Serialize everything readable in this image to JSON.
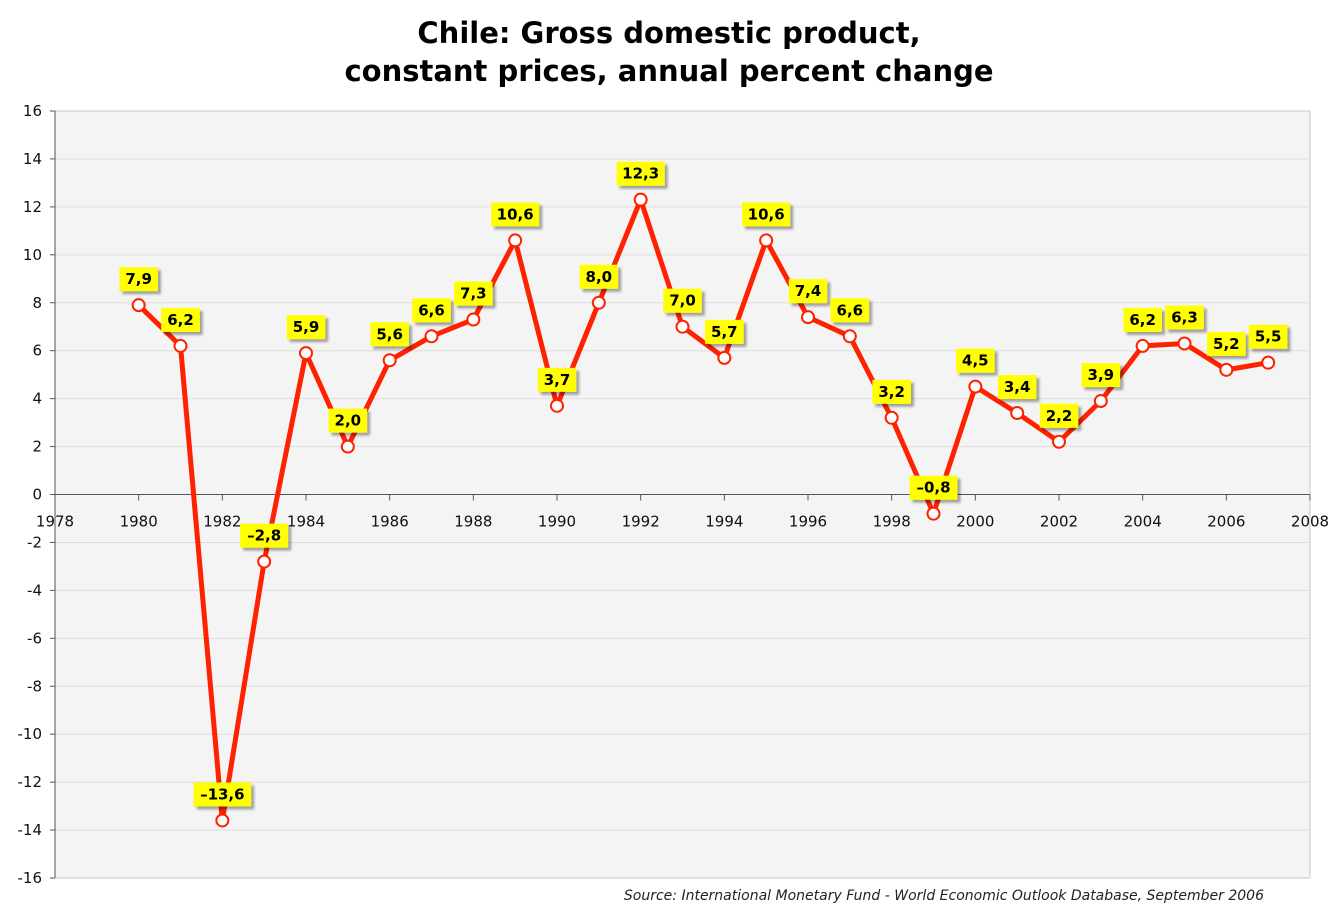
{
  "chart_data": {
    "type": "line",
    "title_line1": "Chile: Gross domestic product,",
    "title_line2": "constant prices, annual percent change",
    "xlabel": "",
    "ylabel": "",
    "source": "Source: International Monetary Fund - World Economic Outlook Database, September 2006",
    "xlim": [
      1978,
      2008
    ],
    "ylim": [
      -16,
      16
    ],
    "x_ticks": [
      "1978",
      "1980",
      "1982",
      "1984",
      "1986",
      "1988",
      "1990",
      "1992",
      "1994",
      "1996",
      "1998",
      "2000",
      "2002",
      "2004",
      "2006",
      "2008"
    ],
    "y_ticks": [
      "16",
      "14",
      "12",
      "10",
      "8",
      "6",
      "4",
      "2",
      "0",
      "-2",
      "-4",
      "-6",
      "-8",
      "-10",
      "-12",
      "-14",
      "-16"
    ],
    "grid": true,
    "series": [
      {
        "name": "",
        "color": "#ff2200",
        "x": [
          1980,
          1981,
          1982,
          1983,
          1984,
          1985,
          1986,
          1987,
          1988,
          1989,
          1990,
          1991,
          1992,
          1993,
          1994,
          1995,
          1996,
          1997,
          1998,
          1999,
          2000,
          2001,
          2002,
          2003,
          2004,
          2005,
          2006,
          2007
        ],
        "values": [
          7.9,
          6.2,
          -13.6,
          -2.8,
          5.9,
          2.0,
          5.6,
          6.6,
          7.3,
          10.6,
          3.7,
          8.0,
          12.3,
          7.0,
          5.7,
          10.6,
          7.4,
          6.6,
          3.2,
          -0.8,
          4.5,
          3.4,
          2.2,
          3.9,
          6.2,
          6.3,
          5.2,
          5.5
        ],
        "labels": [
          "7,9",
          "6,2",
          "–13,6",
          "–2,8",
          "5,9",
          "2,0",
          "5,6",
          "6,6",
          "7,3",
          "10,6",
          "3,7",
          "8,0",
          "12,3",
          "7,0",
          "5,7",
          "10,6",
          "7,4",
          "6,6",
          "3,2",
          "–0,8",
          "4,5",
          "3,4",
          "2,2",
          "3,9",
          "6,2",
          "6,3",
          "5,2",
          "5,5"
        ]
      }
    ],
    "colors": {
      "plot_background": "#f4f4f4",
      "gridline": "#dedede",
      "label_fill": "#ffff00",
      "marker_fill": "#ffffff"
    }
  }
}
